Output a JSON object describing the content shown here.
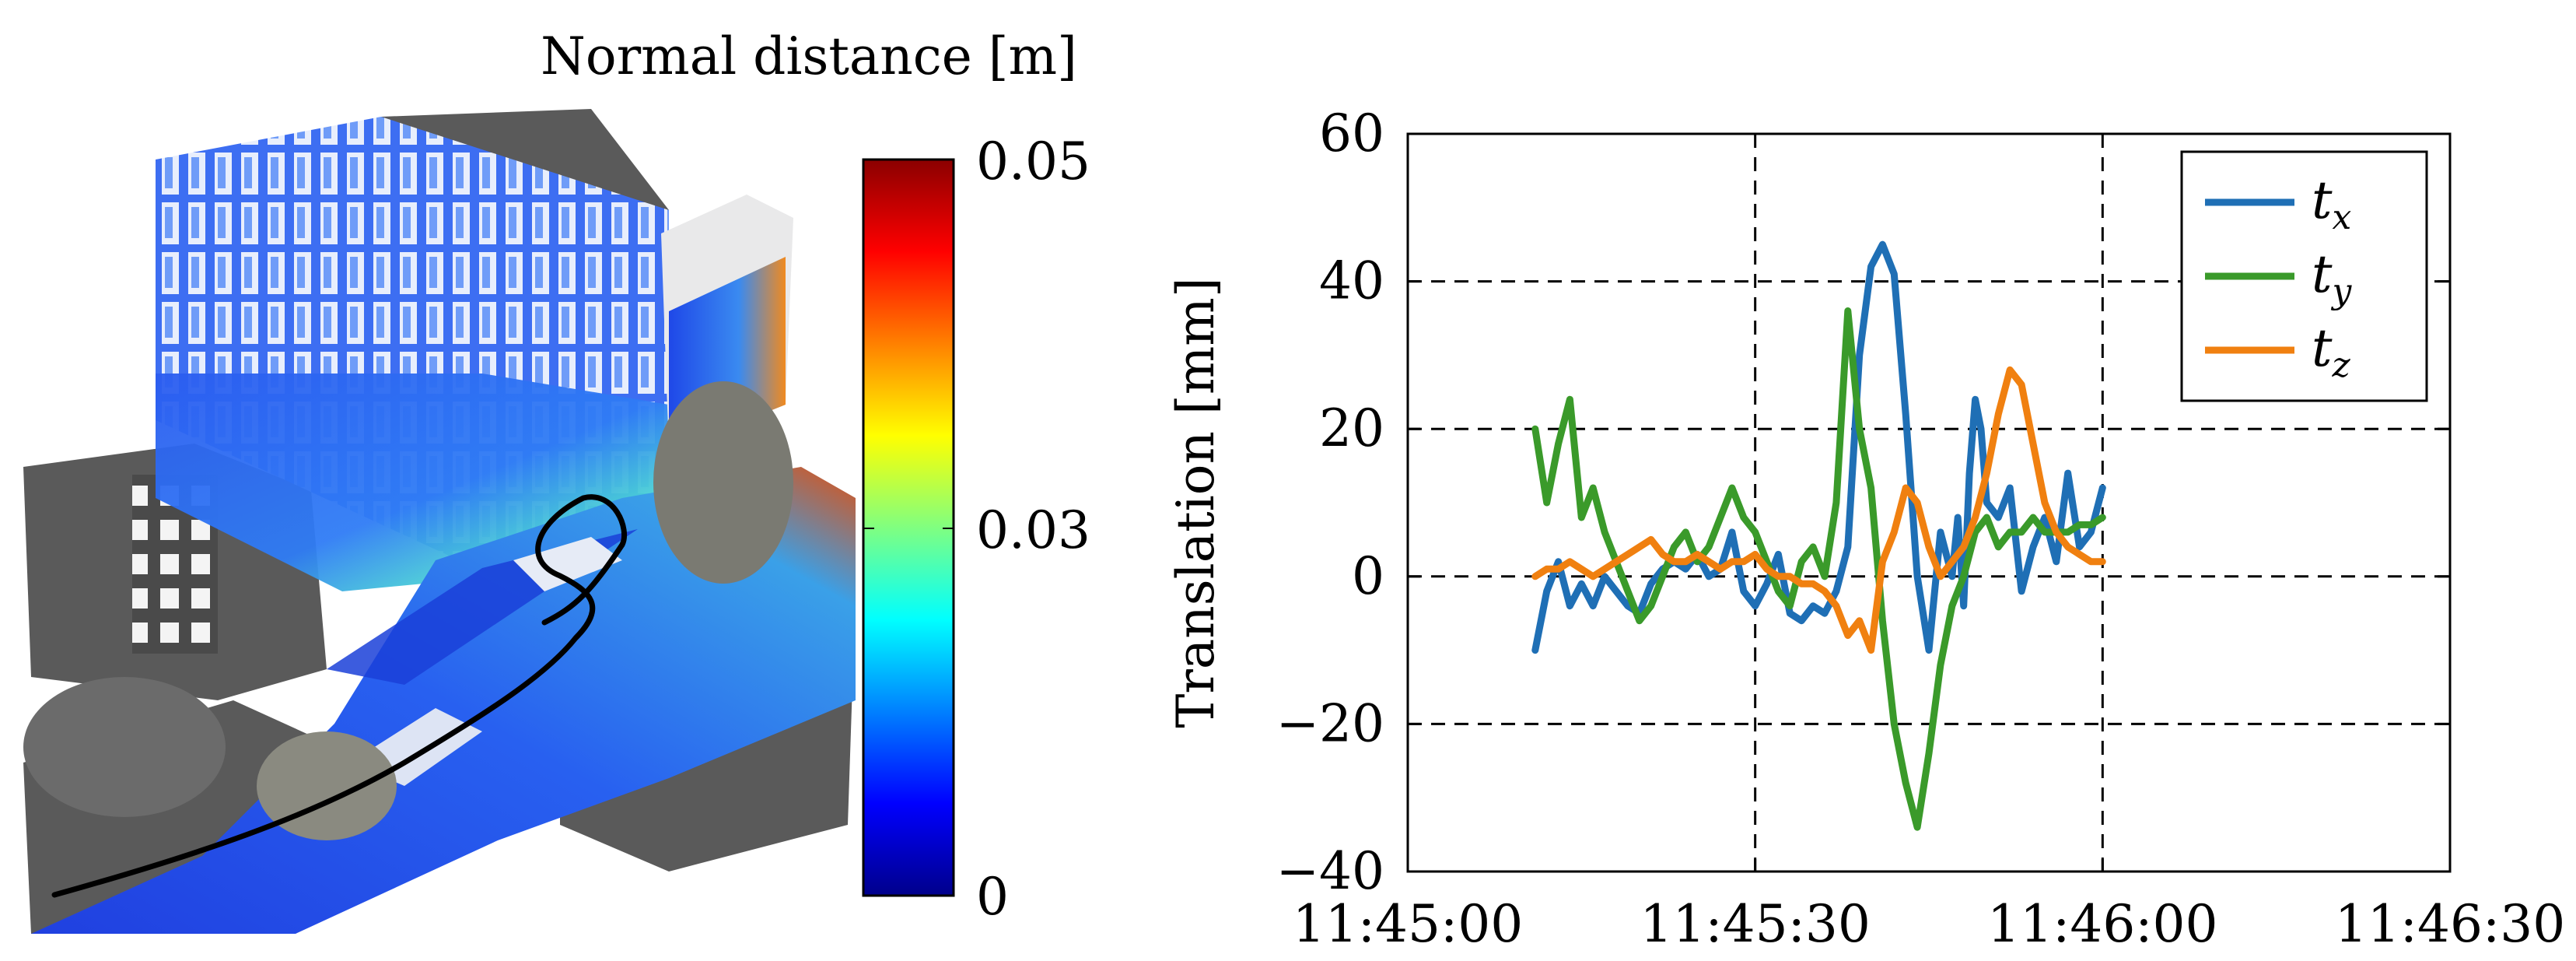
{
  "chart_data": [
    {
      "type": "heatmap",
      "panel": "point-cloud-colormap",
      "colorbar": {
        "title": "Normal distance [m]",
        "ticks": [
          "0.05",
          "0.03",
          "0"
        ],
        "tick_values": [
          0.05,
          0.03,
          0
        ],
        "range": [
          0,
          0.05
        ],
        "colormap": [
          "#00008b",
          "#0000ff",
          "#0080ff",
          "#00ffff",
          "#80ff80",
          "#ffff00",
          "#ff8000",
          "#ff0000",
          "#8b0000"
        ]
      },
      "background_color": "#5a5a5a"
    },
    {
      "type": "line",
      "panel": "translation-plot",
      "xlabel": "",
      "ylabel": "Translation [mm]",
      "xlim": [
        0,
        90
      ],
      "ylim": [
        -40,
        60
      ],
      "x_tick_values": [
        0,
        30,
        60,
        90
      ],
      "x_ticks": [
        "11:45:00",
        "11:45:30",
        "11:46:00",
        "11:46:30"
      ],
      "y_tick_values": [
        60,
        40,
        20,
        0,
        -20,
        -40
      ],
      "y_ticks": [
        "60",
        "40",
        "20",
        "0",
        "−20",
        "−40"
      ],
      "grid": true,
      "legend_position": "top-right",
      "series": [
        {
          "name": "t_x",
          "label_base": "t",
          "label_sub": "x",
          "color": "#1f6fb5",
          "x": [
            11,
            12,
            13,
            14,
            15,
            16,
            17,
            18,
            19,
            20,
            21,
            22,
            23,
            24,
            25,
            26,
            27,
            28,
            29,
            30,
            31,
            32,
            33,
            34,
            35,
            36,
            37,
            38,
            39,
            40,
            41,
            42,
            43,
            44,
            45,
            46,
            47,
            47.5,
            48,
            48.5,
            49,
            49.5,
            50,
            51,
            52,
            53,
            54,
            55,
            56,
            57,
            58,
            59,
            60
          ],
          "y": [
            -10,
            -2,
            2,
            -4,
            -1,
            -4,
            0,
            -2,
            -4,
            -5,
            -1,
            1,
            2,
            1,
            3,
            0,
            1,
            6,
            -2,
            -4,
            -1,
            3,
            -5,
            -6,
            -4,
            -5,
            -2,
            4,
            30,
            42,
            45,
            41,
            22,
            0,
            -10,
            6,
            0,
            8,
            -4,
            14,
            24,
            20,
            10,
            8,
            12,
            -2,
            4,
            8,
            2,
            14,
            4,
            6,
            12
          ]
        },
        {
          "name": "t_y",
          "label_base": "t",
          "label_sub": "y",
          "color": "#3a9a2a",
          "x": [
            11,
            12,
            13,
            14,
            15,
            16,
            17,
            18,
            19,
            20,
            21,
            22,
            23,
            24,
            25,
            26,
            27,
            28,
            29,
            30,
            31,
            32,
            33,
            34,
            35,
            36,
            37,
            38,
            39,
            40,
            41,
            42,
            43,
            44,
            45,
            46,
            47,
            48,
            49,
            50,
            51,
            52,
            53,
            54,
            55,
            56,
            57,
            58,
            59,
            60
          ],
          "y": [
            20,
            10,
            18,
            24,
            8,
            12,
            6,
            2,
            -2,
            -6,
            -4,
            0,
            4,
            6,
            2,
            4,
            8,
            12,
            8,
            6,
            2,
            -2,
            -4,
            2,
            4,
            0,
            10,
            36,
            20,
            12,
            -6,
            -20,
            -28,
            -34,
            -24,
            -12,
            -4,
            0,
            6,
            8,
            4,
            6,
            6,
            8,
            6,
            6,
            6,
            7,
            7,
            8
          ]
        },
        {
          "name": "t_z",
          "label_base": "t",
          "label_sub": "z",
          "color": "#f08010",
          "x": [
            11,
            12,
            13,
            14,
            15,
            16,
            17,
            18,
            19,
            20,
            21,
            22,
            23,
            24,
            25,
            26,
            27,
            28,
            29,
            30,
            31,
            32,
            33,
            34,
            35,
            36,
            37,
            38,
            39,
            40,
            41,
            42,
            43,
            44,
            45,
            46,
            47,
            48,
            49,
            50,
            51,
            52,
            53,
            54,
            55,
            56,
            57,
            58,
            59,
            60
          ],
          "y": [
            0,
            1,
            1,
            2,
            1,
            0,
            1,
            2,
            3,
            4,
            5,
            3,
            2,
            2,
            3,
            2,
            1,
            2,
            2,
            3,
            1,
            0,
            0,
            -1,
            -1,
            -2,
            -4,
            -8,
            -6,
            -10,
            2,
            6,
            12,
            10,
            4,
            0,
            2,
            4,
            8,
            14,
            22,
            28,
            26,
            18,
            10,
            6,
            4,
            3,
            2,
            2
          ]
        }
      ]
    }
  ]
}
